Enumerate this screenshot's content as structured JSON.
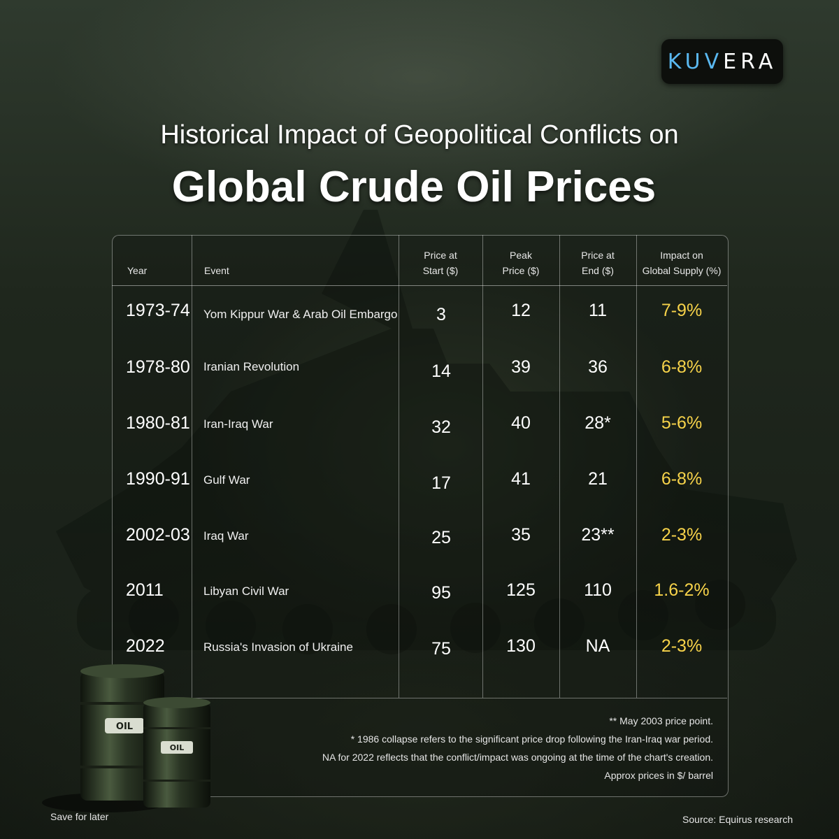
{
  "brand": {
    "logo_part1": "KUV",
    "logo_part2": "ERA"
  },
  "title": {
    "line1": "Historical Impact of Geopolitical Conflicts on",
    "line2": "Global Crude Oil Prices"
  },
  "table": {
    "headers": {
      "year": "Year",
      "event": "Event",
      "start_l1": "Price at",
      "start_l2": "Start ($)",
      "peak_l1": "Peak",
      "peak_l2": "Price ($)",
      "end_l1": "Price at",
      "end_l2": "End ($)",
      "impact_l1": "Impact on",
      "impact_l2": "Global Supply (%)"
    },
    "rows": [
      {
        "year": "1973-74",
        "event": "Yom Kippur War & Arab Oil Embargo",
        "start": "3",
        "peak": "12",
        "end": "11",
        "impact": "7-9%"
      },
      {
        "year": "1978-80",
        "event": "Iranian Revolution",
        "start": "14",
        "peak": "39",
        "end": "36",
        "impact": "6-8%"
      },
      {
        "year": "1980-81",
        "event": "Iran-Iraq War",
        "start": "32",
        "peak": "40",
        "end": "28*",
        "impact": "5-6%"
      },
      {
        "year": "1990-91",
        "event": "Gulf War",
        "start": "17",
        "peak": "41",
        "end": "21",
        "impact": "6-8%"
      },
      {
        "year": "2002-03",
        "event": "Iraq War",
        "start": "25",
        "peak": "35",
        "end": "23**",
        "impact": "2-3%"
      },
      {
        "year": "2011",
        "event": "Libyan Civil War",
        "start": "95",
        "peak": "125",
        "end": "110",
        "impact": "1.6-2%"
      },
      {
        "year": "2022",
        "event": "Russia's Invasion of Ukraine",
        "start": "75",
        "peak": "130",
        "end": "NA",
        "impact": "2-3%"
      }
    ]
  },
  "notes": {
    "n1": "** May 2003 price point.",
    "n2": "* 1986 collapse refers to the significant price drop following the Iran-Iraq war period.",
    "n3": "NA for 2022 reflects that the conflict/impact was ongoing at the time of the chart's creation.",
    "n4": "Approx prices in $/ barrel"
  },
  "barrel_label": "OIL",
  "footer": {
    "save": "Save for later",
    "source": "Source: Equirus research"
  },
  "colors": {
    "impact": "#f7d34a",
    "logo_accent": "#5ab8f0"
  }
}
